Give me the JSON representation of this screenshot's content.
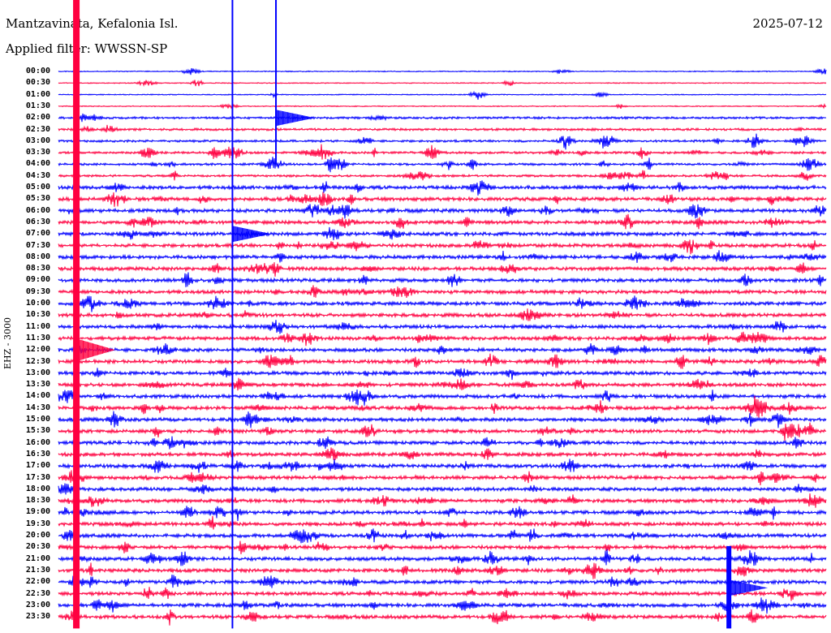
{
  "header": {
    "station": "Mantzavinata, Kefalonia Isl.",
    "filter": "Applied filter: WWSSN-SP",
    "date": "2025-07-12"
  },
  "chart_data": {
    "type": "line",
    "title": "Mantzavinata, Kefalonia Isl.",
    "subtitle": "Applied filter: WWSSN-SP",
    "date": "2025-07-12",
    "ylabel": "EHZ - 3000",
    "xlabel": "",
    "x_range_minutes": [
      0,
      30
    ],
    "row_labels": [
      "00:00",
      "00:30",
      "01:00",
      "01:30",
      "02:00",
      "02:30",
      "03:00",
      "03:30",
      "04:00",
      "04:30",
      "05:00",
      "05:30",
      "06:00",
      "06:30",
      "07:00",
      "07:30",
      "08:00",
      "08:30",
      "09:00",
      "09:30",
      "10:00",
      "10:30",
      "11:00",
      "11:30",
      "12:00",
      "12:30",
      "13:00",
      "13:30",
      "14:00",
      "14:30",
      "15:00",
      "15:30",
      "16:00",
      "16:30",
      "17:00",
      "17:30",
      "18:00",
      "18:30",
      "19:00",
      "19:30",
      "20:00",
      "20:30",
      "21:00",
      "21:30",
      "22:00",
      "22:30",
      "23:00",
      "23:30"
    ],
    "colors": [
      "#0000ff",
      "#ff0040"
    ],
    "major_events": [
      {
        "row": "00:00",
        "minute": 0.7,
        "span_rows": 48,
        "color": "#ff0040"
      },
      {
        "row": "00:00",
        "minute": 6.8,
        "span_rows": 48,
        "color": "#0000ff"
      },
      {
        "row": "00:00",
        "minute": 8.5,
        "span_rows": 8,
        "color": "#0000ff"
      },
      {
        "row": "21:30",
        "minute": 26.2,
        "span_rows": 5,
        "color": "#0000ff"
      }
    ],
    "grid": false
  }
}
